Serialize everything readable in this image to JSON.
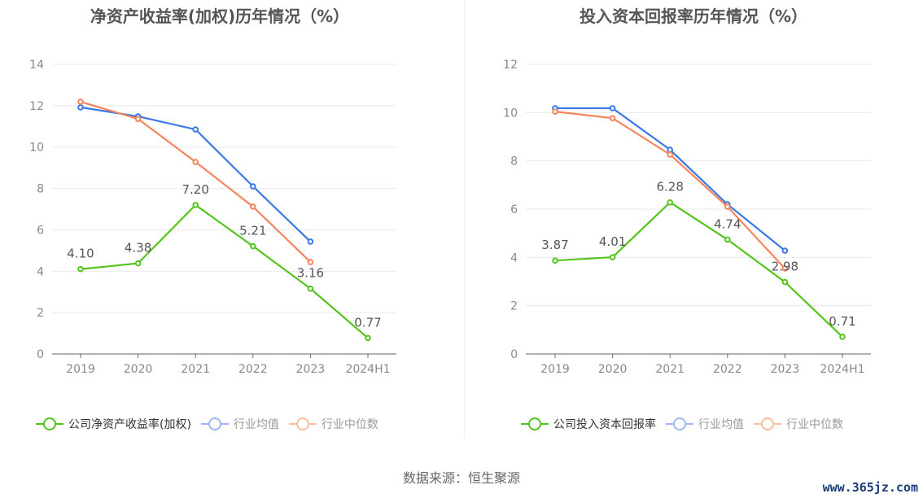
{
  "colors": {
    "company": "#52c41a",
    "avg": "#3a77e8",
    "median": "#f5845a",
    "grid": "#e6e9f0",
    "axis": "#666",
    "tick": "#888",
    "label": "#555"
  },
  "source": "数据来源：恒生聚源",
  "watermark": "www.365jz.com",
  "chart_data": [
    {
      "type": "line",
      "title": "净资产收益率(加权)历年情况（%）",
      "categories": [
        "2019",
        "2020",
        "2021",
        "2022",
        "2023",
        "2024H1"
      ],
      "ylim": [
        0,
        14
      ],
      "yticks": [
        0,
        2,
        4,
        6,
        8,
        10,
        12,
        14
      ],
      "legend_position": "bottom",
      "series": [
        {
          "name": "公司净资产收益率(加权)",
          "key": "company",
          "values": [
            4.1,
            4.38,
            7.2,
            5.21,
            3.16,
            0.77
          ],
          "labels": [
            "4.10",
            "4.38",
            "7.20",
            "5.21",
            "3.16",
            "0.77"
          ]
        },
        {
          "name": "行业均值",
          "key": "avg",
          "values": [
            11.92,
            11.48,
            10.85,
            8.1,
            5.43,
            null
          ]
        },
        {
          "name": "行业中位数",
          "key": "median",
          "values": [
            12.19,
            11.36,
            9.28,
            7.12,
            4.44,
            null
          ]
        }
      ]
    },
    {
      "type": "line",
      "title": "投入资本回报率历年情况（%）",
      "categories": [
        "2019",
        "2020",
        "2021",
        "2022",
        "2023",
        "2024H1"
      ],
      "ylim": [
        0,
        12
      ],
      "yticks": [
        0,
        2,
        4,
        6,
        8,
        10,
        12
      ],
      "legend_position": "bottom",
      "series": [
        {
          "name": "公司投入资本回报率",
          "key": "company",
          "values": [
            3.87,
            4.01,
            6.28,
            4.74,
            2.98,
            0.71
          ],
          "labels": [
            "3.87",
            "4.01",
            "6.28",
            "4.74",
            "2.98",
            "0.71"
          ]
        },
        {
          "name": "行业均值",
          "key": "avg",
          "values": [
            10.18,
            10.18,
            8.46,
            6.2,
            4.28,
            null
          ]
        },
        {
          "name": "行业中位数",
          "key": "median",
          "values": [
            10.04,
            9.77,
            8.26,
            6.1,
            3.54,
            null
          ]
        }
      ]
    }
  ]
}
